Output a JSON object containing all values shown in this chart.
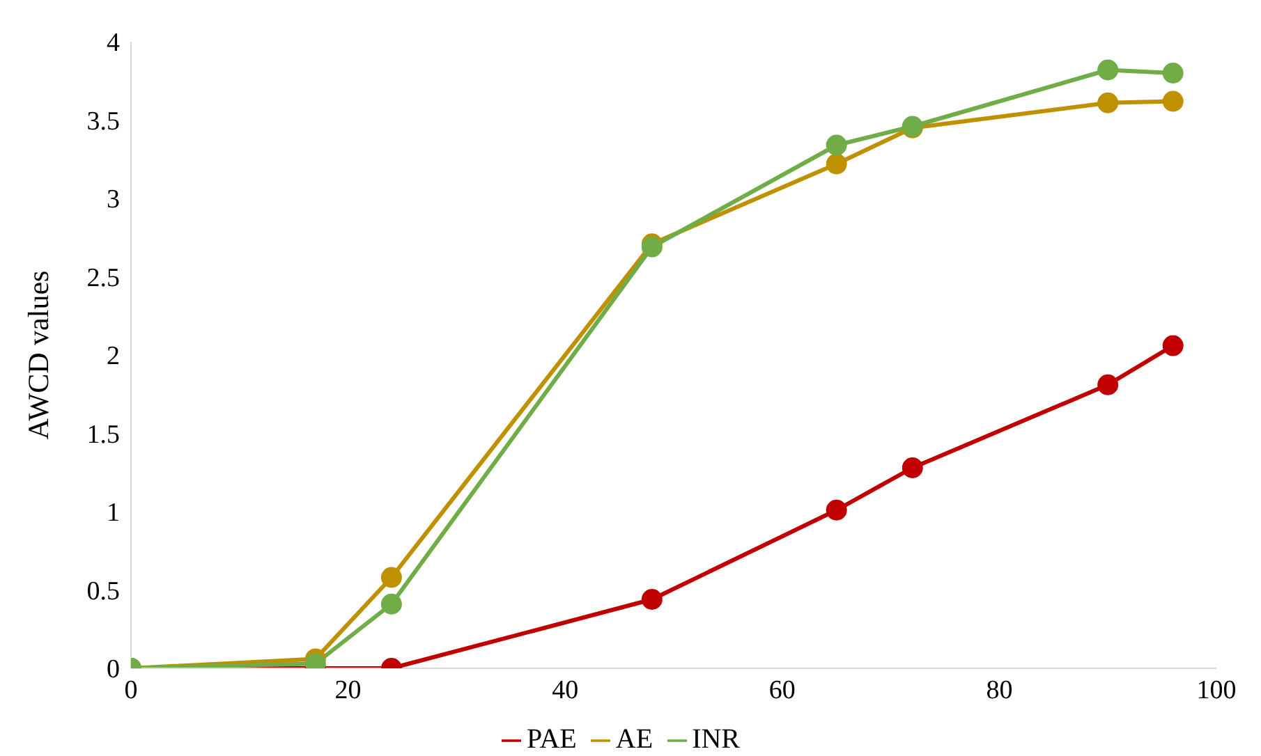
{
  "chart_data": {
    "type": "line",
    "ylabel": "AWCD values",
    "x": [
      0,
      17,
      24,
      48,
      65,
      72,
      90,
      96
    ],
    "series": [
      {
        "name": "PAE",
        "color": "#c00000",
        "values": [
          0,
          0,
          0,
          0.44,
          1.01,
          1.28,
          1.81,
          2.06
        ]
      },
      {
        "name": "AE",
        "color": "#bf9000",
        "values": [
          0,
          0.06,
          0.58,
          2.71,
          3.22,
          3.45,
          3.61,
          3.62
        ]
      },
      {
        "name": "INR",
        "color": "#70ad47",
        "values": [
          0,
          0.03,
          0.41,
          2.69,
          3.34,
          3.46,
          3.82,
          3.8
        ]
      }
    ],
    "xlim": [
      0,
      100
    ],
    "xticks": [
      0,
      20,
      40,
      60,
      80,
      100
    ],
    "ylim": [
      0,
      4
    ],
    "yticks": [
      0,
      0.5,
      1,
      1.5,
      2,
      2.5,
      3,
      3.5,
      4
    ],
    "grid": false,
    "legend": "bottom",
    "marker": "circle",
    "line_style": "solid"
  }
}
